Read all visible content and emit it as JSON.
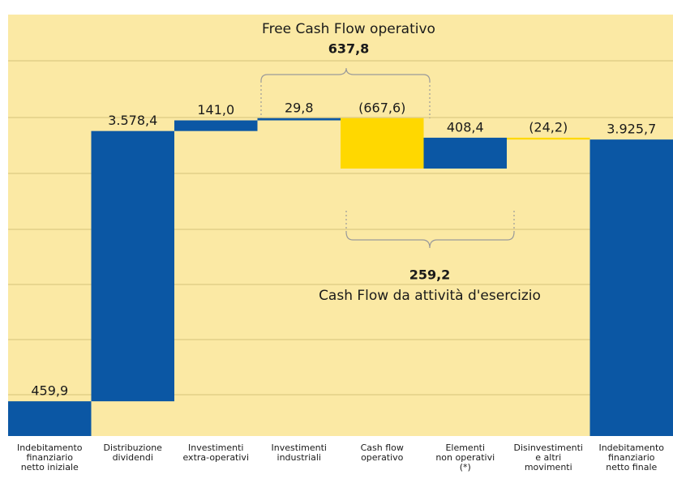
{
  "chart_data": {
    "type": "waterfall",
    "categories": [
      [
        "Indebitamento",
        "finanziario",
        "netto iniziale"
      ],
      [
        "Distribuzione",
        "dividendi"
      ],
      [
        "Investimenti",
        "extra-operativi"
      ],
      [
        "Investimenti",
        "industriali"
      ],
      [
        "Cash flow",
        "operativo"
      ],
      [
        "Elementi",
        "non operativi",
        "(*)"
      ],
      [
        "Disinvestimenti",
        "e altri",
        "movimenti"
      ],
      [
        "Indebitamento",
        "finanziario",
        "netto finale"
      ]
    ],
    "values": [
      459.9,
      3578.4,
      141.0,
      29.8,
      -667.6,
      408.4,
      -24.2,
      3925.7
    ],
    "value_labels": [
      "459,9",
      "3.578,4",
      "141,0",
      "29,8",
      "(667,6)",
      "408,4",
      "(24,2)",
      "3.925,7"
    ],
    "measure": [
      "absolute",
      "relative",
      "relative",
      "relative",
      "relative",
      "relative",
      "relative",
      "total"
    ],
    "increase_color": "#0b57a4",
    "decrease_color": "#ffd800",
    "background": "#fbe9a4",
    "ylim": [
      0,
      5580
    ],
    "annotations": [
      {
        "text": "Free Cash Flow operativo",
        "value_label": "637,8"
      },
      {
        "text": "Cash Flow da attività d'esercizio",
        "value_label": "259,2"
      }
    ]
  }
}
